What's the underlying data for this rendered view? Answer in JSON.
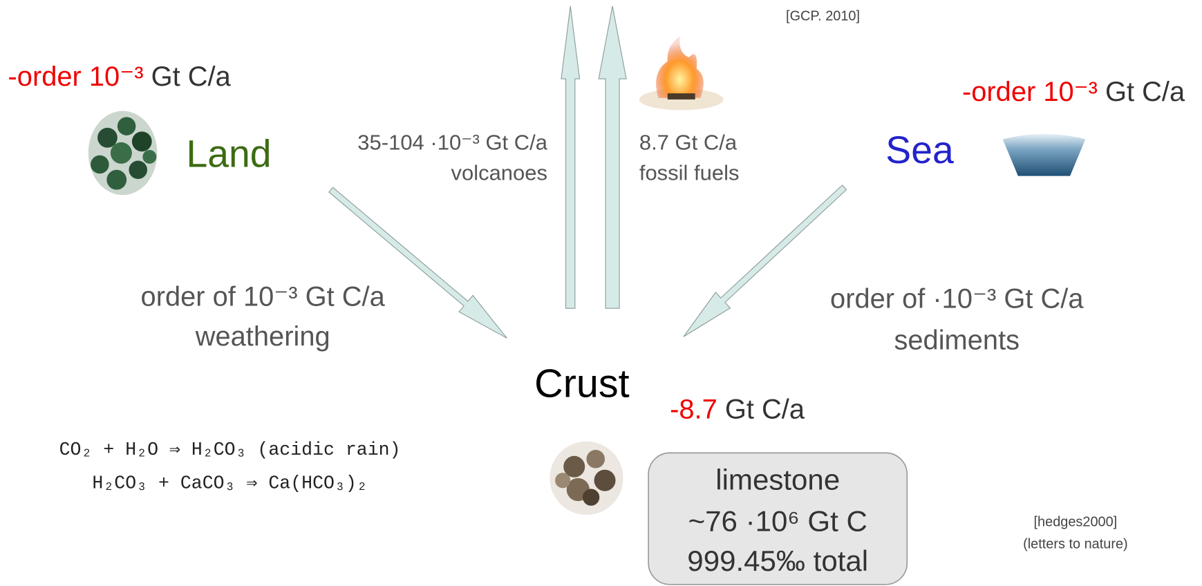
{
  "source_top": "[GCP. 2010]",
  "land": {
    "rate_red": "-order 10⁻³",
    "rate_unit": "Gt C/a",
    "label": "Land"
  },
  "sea": {
    "rate_red": "-order 10⁻³",
    "rate_unit": "Gt C/a",
    "label": "Sea"
  },
  "flows": {
    "volcanoes": {
      "rate": "35-104 ·10⁻³ Gt C/a",
      "label": "volcanoes"
    },
    "fossil_fuels": {
      "rate": "8.7 Gt C/a",
      "label": "fossil fuels"
    },
    "weathering": {
      "rate": "order of 10⁻³ Gt C/a",
      "label": "weathering"
    },
    "sediments": {
      "rate": "order of ·10⁻³ Gt C/a",
      "label": "sediments"
    }
  },
  "crust": {
    "label": "Crust",
    "rate_red": "-8.7",
    "rate_unit": "Gt C/a",
    "box": [
      "limestone",
      "~76 ·10⁶ Gt C",
      "999.45‰ total"
    ]
  },
  "equations": [
    "CO₂ + H₂O ⇒ H₂CO₃ (acidic rain)",
    "H₂CO₃ + CaCO₃ ⇒ Ca(HCO₃)₂"
  ],
  "source_bottom": [
    "[hedges2000]",
    "(letters to nature)"
  ]
}
